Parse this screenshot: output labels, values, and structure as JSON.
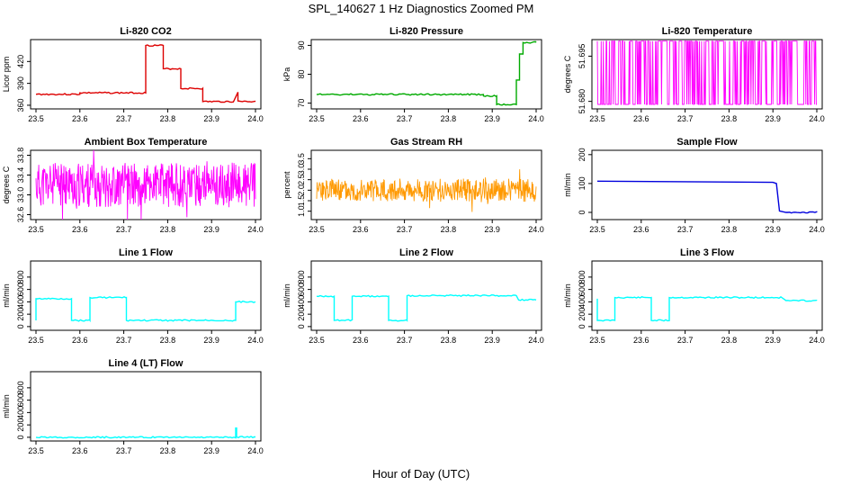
{
  "main_title": "SPL_140627  1 Hz Diagnostics Zoomed PM",
  "x_axis_label": "Hour of Day (UTC)",
  "chart_data": [
    {
      "type": "line",
      "title": "Li-820 CO2",
      "ylabel": "Licor ppm",
      "xlim": [
        23.5,
        24.0
      ],
      "ylim": [
        355,
        450
      ],
      "yticks": [
        "360",
        "390",
        "420"
      ],
      "xticks": [
        "23.5",
        "23.6",
        "23.7",
        "23.8",
        "23.9",
        "24.0"
      ],
      "color": "#dd0000",
      "style": "step",
      "x": [
        23.5,
        23.6,
        23.6,
        23.75,
        23.75,
        23.79,
        23.79,
        23.83,
        23.83,
        23.88,
        23.88,
        23.95,
        23.96,
        23.96,
        23.97,
        24.0
      ],
      "y": [
        375,
        375,
        377,
        377,
        442,
        442,
        410,
        410,
        383,
        383,
        365,
        365,
        378,
        366,
        365,
        365
      ]
    },
    {
      "type": "line",
      "title": "Li-820 Pressure",
      "ylabel": "kPa",
      "xlim": [
        23.5,
        24.0
      ],
      "ylim": [
        68,
        92
      ],
      "yticks": [
        "70",
        "80",
        "90"
      ],
      "xticks": [
        "23.5",
        "23.6",
        "23.7",
        "23.8",
        "23.9",
        "24.0"
      ],
      "color": "#00aa00",
      "style": "step",
      "x": [
        23.5,
        23.88,
        23.88,
        23.91,
        23.91,
        23.955,
        23.955,
        23.962,
        23.962,
        23.97,
        23.97,
        24.0
      ],
      "y": [
        73,
        73,
        72.5,
        72.5,
        69.5,
        69.5,
        78,
        78,
        87,
        87,
        91,
        91
      ]
    },
    {
      "type": "line",
      "title": "Li-820 Temperature",
      "ylabel": "degrees C",
      "xlim": [
        23.5,
        24.0
      ],
      "ylim": [
        51.6775,
        51.7005
      ],
      "yticks": [
        "51.680",
        "51.695"
      ],
      "xticks": [
        "23.5",
        "23.6",
        "23.7",
        "23.8",
        "23.9",
        "24.0"
      ],
      "color": "#ff00ff",
      "style": "binary",
      "low": 51.679,
      "high": 51.7,
      "seed": 7
    },
    {
      "type": "line",
      "title": "Ambient Box Temperature",
      "ylabel": "degrees C",
      "xlim": [
        23.5,
        24.0
      ],
      "ylim": [
        32.5,
        33.9
      ],
      "yticks": [
        "32.6",
        "33.0",
        "33.4",
        "33.8"
      ],
      "xticks": [
        "23.5",
        "23.6",
        "23.7",
        "23.8",
        "23.9",
        "24.0"
      ],
      "color": "#ff00ff",
      "style": "noise",
      "center": 33.2,
      "amplitude": 0.45,
      "seed": 11
    },
    {
      "type": "line",
      "title": "Gas Stream RH",
      "ylabel": "percent",
      "xlim": [
        23.5,
        24.0
      ],
      "ylim": [
        0.6,
        3.9
      ],
      "yticks": [
        "1.0",
        "1.5",
        "2.0",
        "2.5",
        "3.0",
        "3.5"
      ],
      "xticks": [
        "23.5",
        "23.6",
        "23.7",
        "23.8",
        "23.9",
        "24.0"
      ],
      "color": "#ff9900",
      "style": "noise",
      "center": 2.0,
      "amplitude": 0.55,
      "seed": 23
    },
    {
      "type": "line",
      "title": "Sample Flow",
      "ylabel": "ml/min",
      "xlim": [
        23.5,
        24.0
      ],
      "ylim": [
        -25,
        215
      ],
      "yticks": [
        "0",
        "100",
        "200"
      ],
      "xticks": [
        "23.5",
        "23.6",
        "23.7",
        "23.8",
        "23.9",
        "24.0"
      ],
      "color": "#0000dd",
      "style": "step",
      "x": [
        23.5,
        23.9,
        23.908,
        23.915,
        23.93,
        24.0
      ],
      "y": [
        108,
        104,
        100,
        5,
        0,
        0
      ]
    },
    {
      "type": "line",
      "title": "Line 1 Flow",
      "ylabel": "ml/min",
      "xlim": [
        23.5,
        24.0
      ],
      "ylim": [
        -60,
        1060
      ],
      "yticks": [
        "0",
        "200",
        "400",
        "600",
        "800"
      ],
      "xticks": [
        "23.5",
        "23.6",
        "23.7",
        "23.8",
        "23.9",
        "24.0"
      ],
      "color": "#00ffff",
      "style": "step",
      "x": [
        23.5,
        23.5,
        23.581,
        23.581,
        23.623,
        23.623,
        23.706,
        23.706,
        23.955,
        23.955,
        24.0
      ],
      "y": [
        100,
        450,
        450,
        100,
        100,
        470,
        470,
        100,
        100,
        400,
        400
      ]
    },
    {
      "type": "line",
      "title": "Line 2 Flow",
      "ylabel": "ml/min",
      "xlim": [
        23.5,
        24.0
      ],
      "ylim": [
        -60,
        1060
      ],
      "yticks": [
        "0",
        "200",
        "400",
        "600",
        "800"
      ],
      "xticks": [
        "23.5",
        "23.6",
        "23.7",
        "23.8",
        "23.9",
        "24.0"
      ],
      "color": "#00ffff",
      "style": "step",
      "x": [
        23.5,
        23.54,
        23.54,
        23.581,
        23.581,
        23.664,
        23.664,
        23.706,
        23.706,
        23.955,
        23.96,
        24.0
      ],
      "y": [
        490,
        490,
        100,
        100,
        490,
        490,
        100,
        100,
        500,
        500,
        430,
        430
      ]
    },
    {
      "type": "line",
      "title": "Line 3 Flow",
      "ylabel": "ml/min",
      "xlim": [
        23.5,
        24.0
      ],
      "ylim": [
        -60,
        1060
      ],
      "yticks": [
        "0",
        "200",
        "400",
        "600",
        "800"
      ],
      "xticks": [
        "23.5",
        "23.6",
        "23.7",
        "23.8",
        "23.9",
        "24.0"
      ],
      "color": "#00ffff",
      "style": "step",
      "x": [
        23.5,
        23.5,
        23.505,
        23.505,
        23.54,
        23.54,
        23.623,
        23.623,
        23.664,
        23.664,
        23.92,
        23.93,
        24.0
      ],
      "y": [
        450,
        100,
        100,
        100,
        100,
        470,
        470,
        100,
        100,
        470,
        470,
        420,
        420
      ]
    },
    {
      "type": "line",
      "title": "Line 4 (LT) Flow",
      "ylabel": "ml/min",
      "xlim": [
        23.5,
        24.0
      ],
      "ylim": [
        -60,
        1060
      ],
      "yticks": [
        "0",
        "200",
        "400",
        "600",
        "800"
      ],
      "xticks": [
        "23.5",
        "23.6",
        "23.7",
        "23.8",
        "23.9",
        "24.0"
      ],
      "color": "#00ffff",
      "style": "step",
      "x": [
        23.5,
        23.955,
        23.955,
        23.957,
        23.957,
        24.0
      ],
      "y": [
        0,
        0,
        150,
        150,
        5,
        5
      ]
    }
  ]
}
